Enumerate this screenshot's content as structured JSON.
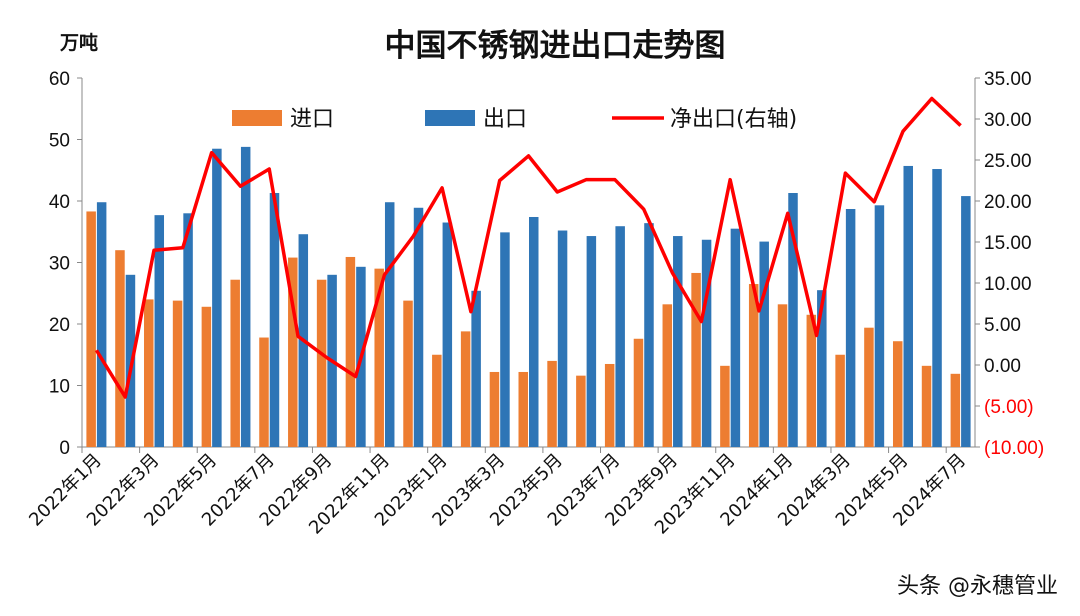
{
  "footer": "头条 @永穗管业",
  "chart_data": {
    "type": "bar+line",
    "title": "中国不锈钢进出口走势图",
    "left_unit": "万吨",
    "categories": [
      "2022年1月",
      "2022年2月",
      "2022年3月",
      "2022年4月",
      "2022年5月",
      "2022年6月",
      "2022年7月",
      "2022年8月",
      "2022年9月",
      "2022年10月",
      "2022年11月",
      "2022年12月",
      "2023年1月",
      "2023年2月",
      "2023年3月",
      "2023年4月",
      "2023年5月",
      "2023年6月",
      "2023年7月",
      "2023年8月",
      "2023年9月",
      "2023年10月",
      "2023年11月",
      "2023年12月",
      "2024年1月",
      "2024年2月",
      "2024年3月",
      "2024年4月",
      "2024年5月",
      "2024年6月",
      "2024年7月"
    ],
    "xtick_labels": [
      "2022年1月",
      "2022年3月",
      "2022年5月",
      "2022年7月",
      "2022年9月",
      "2022年11月",
      "2023年1月",
      "2023年3月",
      "2023年5月",
      "2023年7月",
      "2023年9月",
      "2023年11月",
      "2024年1月",
      "2024年3月",
      "2024年5月",
      "2024年7月"
    ],
    "series": [
      {
        "name": "进口",
        "type": "bar",
        "axis": "left",
        "color": "#ED7D31",
        "values": [
          38.3,
          32.0,
          24.0,
          23.8,
          22.8,
          27.2,
          17.8,
          30.8,
          27.2,
          30.9,
          29.0,
          23.8,
          15.0,
          18.8,
          12.2,
          12.2,
          14.0,
          11.6,
          13.5,
          17.6,
          23.2,
          28.3,
          13.2,
          26.5,
          23.2,
          21.5,
          15.0,
          19.4,
          17.2,
          13.2,
          11.9
        ]
      },
      {
        "name": "出口",
        "type": "bar",
        "axis": "left",
        "color": "#2E75B6",
        "values": [
          39.8,
          28.0,
          37.7,
          38.0,
          48.5,
          48.8,
          41.3,
          34.6,
          28.0,
          29.3,
          39.8,
          38.9,
          36.5,
          25.4,
          34.9,
          37.4,
          35.2,
          34.3,
          35.9,
          36.4,
          34.3,
          33.7,
          35.5,
          33.4,
          41.3,
          25.5,
          38.7,
          39.3,
          45.7,
          45.2,
          40.8
        ]
      },
      {
        "name": "净出口(右轴)",
        "type": "line",
        "axis": "right",
        "color": "#FF0000",
        "values": [
          1.8,
          -3.9,
          14.0,
          14.3,
          25.9,
          21.8,
          23.9,
          3.5,
          0.9,
          -1.4,
          11.0,
          15.7,
          21.6,
          6.5,
          22.5,
          25.5,
          21.1,
          22.6,
          22.6,
          19.0,
          11.2,
          5.3,
          22.6,
          6.6,
          18.5,
          3.6,
          23.4,
          19.9,
          28.5,
          32.5,
          29.2
        ]
      }
    ],
    "left_axis": {
      "range": [
        0,
        60
      ],
      "ticks": [
        "0",
        "10",
        "20",
        "30",
        "40",
        "50",
        "60"
      ]
    },
    "right_axis": {
      "range": [
        -10,
        35
      ],
      "ticks": [
        "(10.00)",
        "(5.00)",
        "0.00",
        "5.00",
        "10.00",
        "15.00",
        "20.00",
        "25.00",
        "30.00",
        "35.00"
      ],
      "negative_color": "#FF0000"
    },
    "grid": false,
    "legend": "top"
  }
}
